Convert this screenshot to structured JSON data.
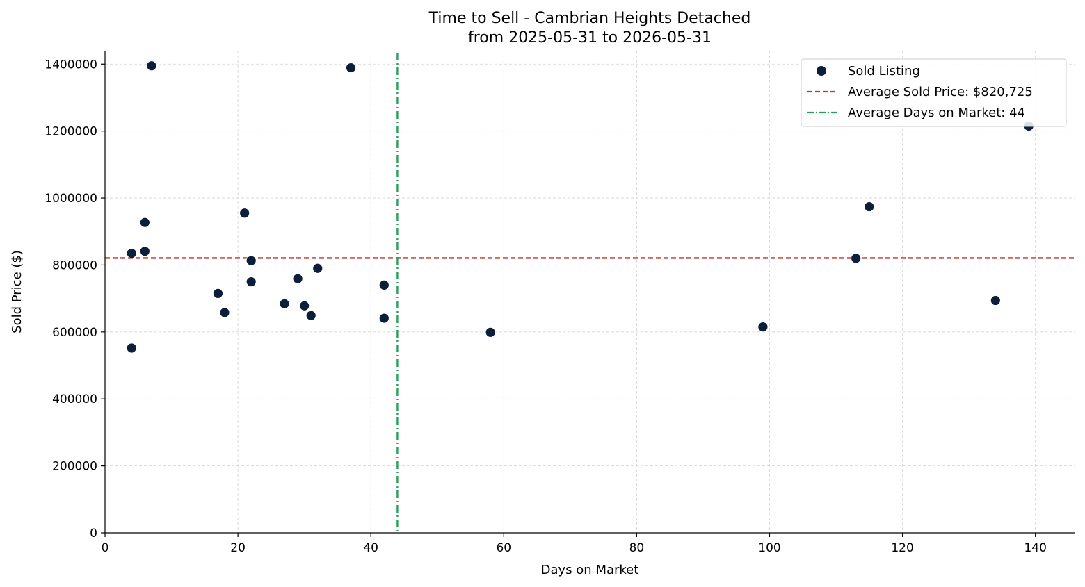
{
  "chart_data": {
    "type": "scatter",
    "title": "Time to Sell - Cambrian Heights Detached",
    "subtitle": "from 2025-05-31 to 2026-05-31",
    "xlabel": "Days on Market",
    "ylabel": "Sold Price ($)",
    "xlim": [
      0,
      146
    ],
    "ylim": [
      0,
      1440000
    ],
    "x_ticks": [
      0,
      20,
      40,
      60,
      80,
      100,
      120,
      140
    ],
    "y_ticks": [
      0,
      200000,
      400000,
      600000,
      800000,
      1000000,
      1200000,
      1400000
    ],
    "grid": true,
    "legend_position": "top-right",
    "colors": {
      "points": "#0b1f3a",
      "avg_price_line": "#c0392b",
      "avg_days_line": "#27a05a"
    },
    "series": [
      {
        "name": "Sold Listing",
        "points": [
          {
            "x": 4,
            "y": 835000
          },
          {
            "x": 4,
            "y": 552000
          },
          {
            "x": 6,
            "y": 927000
          },
          {
            "x": 6,
            "y": 841000
          },
          {
            "x": 7,
            "y": 1395000
          },
          {
            "x": 17,
            "y": 715000
          },
          {
            "x": 18,
            "y": 658000
          },
          {
            "x": 21,
            "y": 955000
          },
          {
            "x": 22,
            "y": 813000
          },
          {
            "x": 22,
            "y": 750000
          },
          {
            "x": 27,
            "y": 684000
          },
          {
            "x": 29,
            "y": 759000
          },
          {
            "x": 30,
            "y": 678000
          },
          {
            "x": 31,
            "y": 649000
          },
          {
            "x": 32,
            "y": 790000
          },
          {
            "x": 37,
            "y": 1389000
          },
          {
            "x": 42,
            "y": 740000
          },
          {
            "x": 42,
            "y": 641000
          },
          {
            "x": 58,
            "y": 599000
          },
          {
            "x": 99,
            "y": 615000
          },
          {
            "x": 113,
            "y": 820000
          },
          {
            "x": 115,
            "y": 974000
          },
          {
            "x": 134,
            "y": 694000
          },
          {
            "x": 139,
            "y": 1215000
          }
        ]
      }
    ],
    "reference_lines": {
      "avg_price": {
        "label": "Average Sold Price: $820,725",
        "value": 820725,
        "orientation": "horizontal"
      },
      "avg_days": {
        "label": "Average Days on Market: 44",
        "value": 44,
        "orientation": "vertical"
      }
    }
  }
}
